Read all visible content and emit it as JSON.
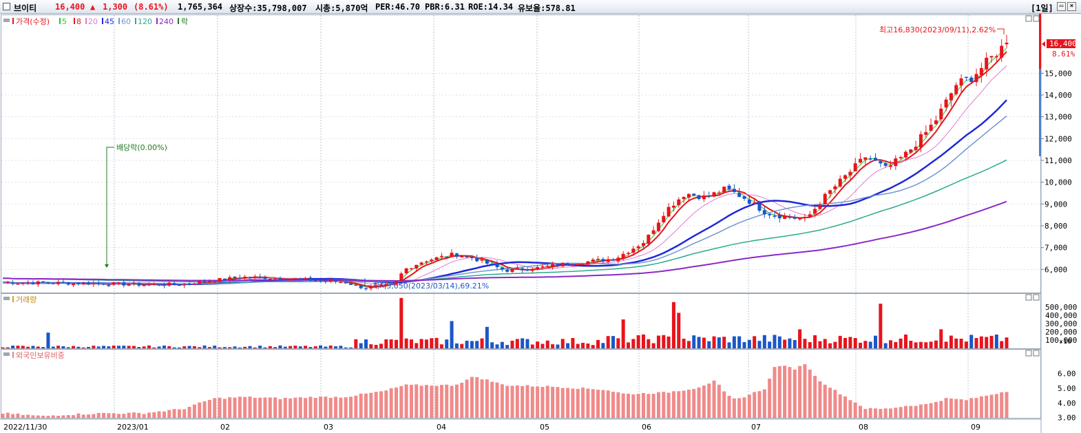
{
  "header": {
    "name": "브이티",
    "price": "16,400",
    "arrow": "▲",
    "change": "1,300",
    "change_pct": "(8.61%)",
    "volume": "1,765,364",
    "listed": "상장수:35,798,007",
    "mcap": "시총:5,870억",
    "per": "PER:46.70",
    "pbr": "PBR:6.31",
    "roe": "ROE:14.34",
    "retention": "유보율:578.81",
    "period": "[1일]"
  },
  "colors": {
    "up": "#e8141c",
    "down": "#1a57c8",
    "ma5": "#28c828",
    "ma8": "#e8141c",
    "ma20": "#e07ad0",
    "ma45": "#1e28d8",
    "ma60": "#6e96d2",
    "ma120": "#2aaa8c",
    "ma240": "#8a28c8",
    "dividend": "#1e7a1e"
  },
  "price_panel": {
    "legend": [
      "가격(수정)",
      "5",
      "8",
      "20",
      "45",
      "60",
      "120",
      "240",
      "락"
    ],
    "y_ticks": [
      "6,000",
      "7,000",
      "8,000",
      "9,000",
      "10,000",
      "11,000",
      "12,000",
      "13,000",
      "14,000",
      "15,000"
    ],
    "current_price": "16,400",
    "current_pct": "8.61%",
    "high_label": "최고16,830(2023/09/11),2.62%",
    "low_label": "최저5,050(2023/03/14),69.21%",
    "dividend_label": "배당락(0.00%)"
  },
  "volume_panel": {
    "title": "거래량",
    "y_ticks": [
      "100,000",
      "200,000",
      "300,000",
      "400,000",
      "500,000"
    ],
    "unit": "×10"
  },
  "foreign_panel": {
    "title": "외국인보유비중",
    "y_ticks": [
      "3.00",
      "4.00",
      "5.00",
      "6.00"
    ]
  },
  "x_axis": [
    "2022/11/30",
    "2023/01",
    "02",
    "03",
    "04",
    "05",
    "06",
    "07",
    "08",
    "09"
  ],
  "chart_data": [
    {
      "type": "candlestick",
      "title": "가격(수정)",
      "x": [
        "2022-11-30",
        "2023-01",
        "2023-02",
        "2023-03",
        "2023-04",
        "2023-05",
        "2023-06",
        "2023-07",
        "2023-08",
        "2023-09"
      ],
      "ylim": [
        5000,
        17000
      ],
      "close_path": {
        "x": [
          0,
          0.05,
          0.1,
          0.14,
          0.18,
          0.2,
          0.24,
          0.28,
          0.31,
          0.34,
          0.36,
          0.39,
          0.4,
          0.42,
          0.45,
          0.47,
          0.5,
          0.53,
          0.56,
          0.59,
          0.61,
          0.64,
          0.66,
          0.68,
          0.7,
          0.72,
          0.74,
          0.76,
          0.78,
          0.8,
          0.82,
          0.84,
          0.86,
          0.88,
          0.9,
          0.92,
          0.93,
          0.95,
          0.965,
          1.0
        ],
        "close": [
          5400,
          5380,
          5350,
          5300,
          5320,
          5450,
          5650,
          5600,
          5500,
          5420,
          5150,
          5300,
          6000,
          6400,
          6700,
          6500,
          5950,
          6050,
          6250,
          6400,
          6500,
          7300,
          8700,
          9500,
          9300,
          9700,
          9250,
          8600,
          8400,
          8300,
          9400,
          10300,
          11200,
          10600,
          11300,
          12300,
          12900,
          14500,
          14800,
          16400
        ]
      },
      "series": [
        {
          "name": "5",
          "lag": 2
        },
        {
          "name": "8",
          "lag": 4
        },
        {
          "name": "20",
          "lag": 10
        },
        {
          "name": "45",
          "lag": 22
        },
        {
          "name": "60",
          "lag": 30
        },
        {
          "name": "120",
          "lag": 58
        },
        {
          "name": "240",
          "lag": 110
        }
      ],
      "annotations": [
        {
          "label": "최고16,830(2023/09/11),2.62%",
          "value": 16830
        },
        {
          "label": "최저5,050(2023/03/14),69.21%",
          "value": 5050
        },
        {
          "label": "배당락(0.00%)"
        }
      ]
    },
    {
      "type": "bar",
      "title": "거래량",
      "unit": "×10",
      "ylim": [
        0,
        600000
      ],
      "spikes": [
        {
          "x": 0.045,
          "value": 190000,
          "dir": "down"
        },
        {
          "x": 0.35,
          "value": 110000,
          "dir": "up"
        },
        {
          "x": 0.396,
          "value": 610000,
          "dir": "up"
        },
        {
          "x": 0.447,
          "value": 330000,
          "dir": "down"
        },
        {
          "x": 0.482,
          "value": 260000,
          "dir": "down"
        },
        {
          "x": 0.617,
          "value": 350000,
          "dir": "up"
        },
        {
          "x": 0.667,
          "value": 560000,
          "dir": "up"
        },
        {
          "x": 0.675,
          "value": 430000,
          "dir": "up"
        },
        {
          "x": 0.795,
          "value": 230000,
          "dir": "up"
        },
        {
          "x": 0.875,
          "value": 540000,
          "dir": "up"
        },
        {
          "x": 0.935,
          "value": 230000,
          "dir": "up"
        }
      ]
    },
    {
      "type": "bar",
      "title": "외국인보유비중",
      "ylim": [
        2.8,
        7.0
      ],
      "points": {
        "x": [
          0,
          0.04,
          0.06,
          0.1,
          0.14,
          0.18,
          0.21,
          0.24,
          0.28,
          0.31,
          0.34,
          0.38,
          0.4,
          0.41,
          0.45,
          0.47,
          0.48,
          0.5,
          0.55,
          0.6,
          0.62,
          0.66,
          0.69,
          0.71,
          0.72,
          0.73,
          0.76,
          0.77,
          0.79,
          0.8,
          0.81,
          0.83,
          0.86,
          0.88,
          0.9,
          0.92,
          0.94,
          0.96,
          1.0
        ],
        "values": [
          3.3,
          3.1,
          3.2,
          3.3,
          3.3,
          3.6,
          4.3,
          4.4,
          4.3,
          4.4,
          4.4,
          4.8,
          5.2,
          5.2,
          5.2,
          5.8,
          5.6,
          5.2,
          5.1,
          4.9,
          4.6,
          4.7,
          5.0,
          5.5,
          4.6,
          4.2,
          5.0,
          6.6,
          6.3,
          6.7,
          5.7,
          4.8,
          3.6,
          3.6,
          3.8,
          3.9,
          4.3,
          4.2,
          4.8
        ]
      }
    }
  ]
}
